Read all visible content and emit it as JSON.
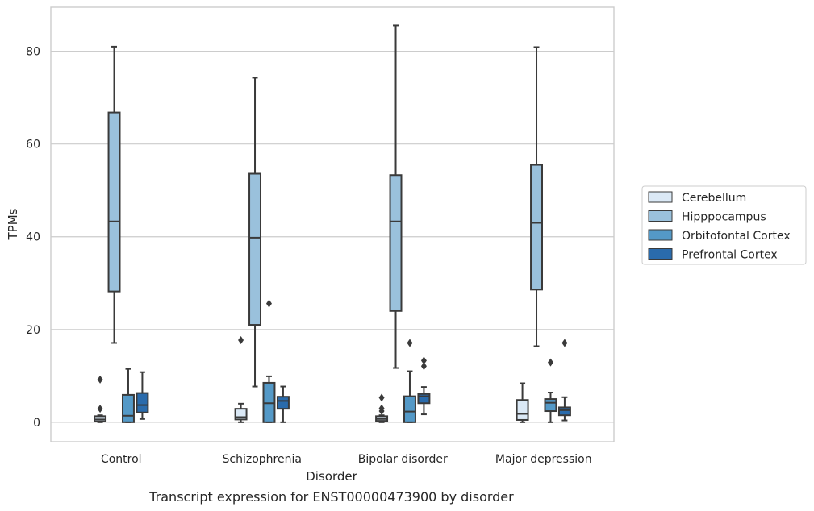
{
  "colors": {
    "Cerebellum": "#dbe9f6",
    "Hipppocampus": "#9ac1dc",
    "Orbitofontal Cortex": "#5499c7",
    "Prefrontal Cortex": "#2a6bac",
    "line": "#3a3a3a",
    "grid": "#cccccc",
    "frame": "#cccccc"
  },
  "chart_data": {
    "type": "boxplot",
    "caption": "Transcript expression for ENST00000473900 by disorder",
    "xlabel": "Disorder",
    "ylabel": "TPMs",
    "ylim": [
      -4.2,
      89.5
    ],
    "yticks": [
      0,
      20,
      40,
      60,
      80
    ],
    "grid": true,
    "legend_position": "right",
    "categories": [
      "Control",
      "Schizophrenia",
      "Bipolar disorder",
      "Major depression"
    ],
    "series": [
      {
        "name": "Cerebellum",
        "boxes": [
          {
            "whislo": 0.0,
            "q1": 0.2,
            "med": 0.6,
            "q3": 1.3,
            "whishi": 1.5,
            "fliers": [
              2.9,
              9.2
            ]
          },
          {
            "whislo": 0.0,
            "q1": 0.6,
            "med": 1.1,
            "q3": 2.9,
            "whishi": 4.0,
            "fliers": [
              17.7
            ]
          },
          {
            "whislo": 0.0,
            "q1": 0.3,
            "med": 0.7,
            "q3": 1.3,
            "whishi": 1.5,
            "fliers": [
              2.4,
              3.0,
              5.3
            ]
          },
          {
            "whislo": 0.0,
            "q1": 0.5,
            "med": 1.8,
            "q3": 4.8,
            "whishi": 8.4,
            "fliers": []
          }
        ]
      },
      {
        "name": "Hipppocampus",
        "boxes": [
          {
            "whislo": 17.1,
            "q1": 28.2,
            "med": 43.3,
            "q3": 66.8,
            "whishi": 81.0,
            "fliers": []
          },
          {
            "whislo": 7.7,
            "q1": 21.0,
            "med": 39.8,
            "q3": 53.6,
            "whishi": 74.3,
            "fliers": []
          },
          {
            "whislo": 11.7,
            "q1": 24.0,
            "med": 43.3,
            "q3": 53.3,
            "whishi": 85.6,
            "fliers": []
          },
          {
            "whislo": 16.4,
            "q1": 28.6,
            "med": 43.0,
            "q3": 55.5,
            "whishi": 80.9,
            "fliers": []
          }
        ]
      },
      {
        "name": "Orbitofontal Cortex",
        "boxes": [
          {
            "whislo": 0.0,
            "q1": 0.0,
            "med": 1.4,
            "q3": 5.9,
            "whishi": 11.5,
            "fliers": []
          },
          {
            "whislo": 0.0,
            "q1": 0.0,
            "med": 4.1,
            "q3": 8.5,
            "whishi": 9.9,
            "fliers": [
              25.6
            ]
          },
          {
            "whislo": 0.0,
            "q1": 0.0,
            "med": 2.3,
            "q3": 5.6,
            "whishi": 11.0,
            "fliers": [
              17.1
            ]
          },
          {
            "whislo": 0.0,
            "q1": 2.4,
            "med": 4.2,
            "q3": 5.0,
            "whishi": 6.4,
            "fliers": [
              12.9
            ]
          }
        ]
      },
      {
        "name": "Prefrontal Cortex",
        "boxes": [
          {
            "whislo": 0.7,
            "q1": 2.1,
            "med": 3.7,
            "q3": 6.3,
            "whishi": 10.8,
            "fliers": []
          },
          {
            "whislo": 0.0,
            "q1": 2.9,
            "med": 4.6,
            "q3": 5.5,
            "whishi": 7.7,
            "fliers": []
          },
          {
            "whislo": 1.7,
            "q1": 4.1,
            "med": 5.6,
            "q3": 6.1,
            "whishi": 7.6,
            "fliers": [
              12.1,
              13.3
            ]
          },
          {
            "whislo": 0.4,
            "q1": 1.5,
            "med": 2.6,
            "q3": 3.2,
            "whishi": 5.4,
            "fliers": [
              17.1
            ]
          }
        ]
      }
    ]
  }
}
